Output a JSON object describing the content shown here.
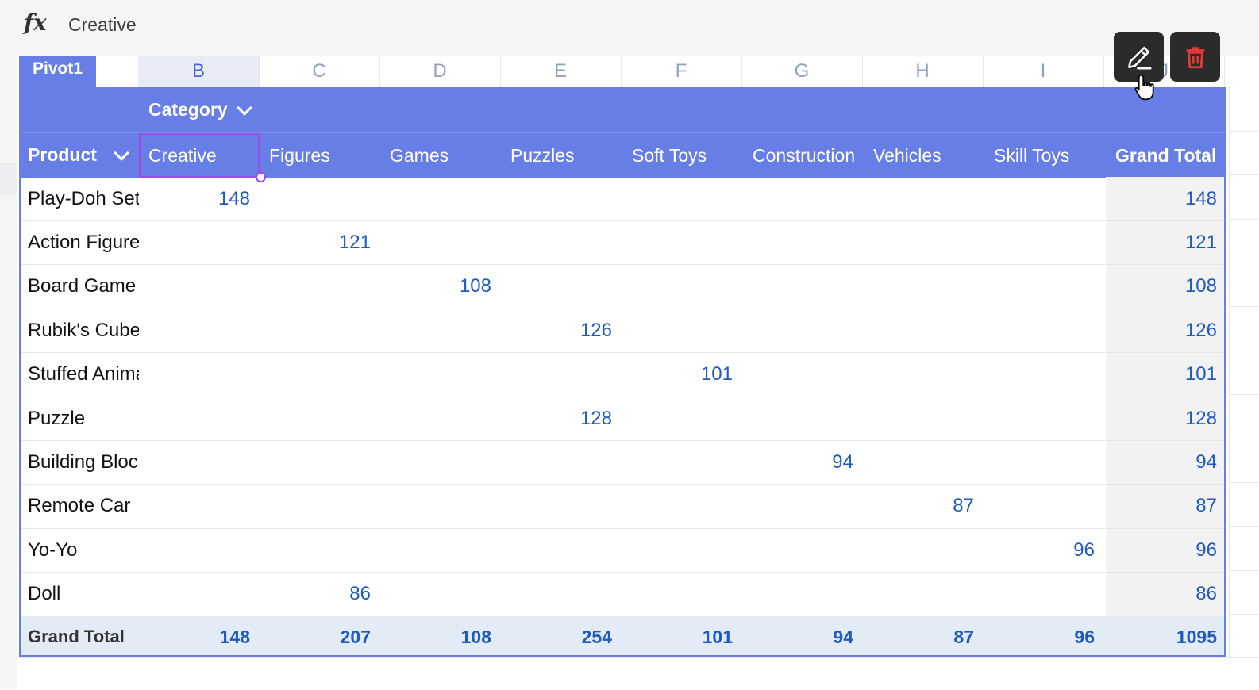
{
  "formula_bar": {
    "fx_label": "fx",
    "value": "Creative"
  },
  "columns": [
    "B",
    "C",
    "D",
    "E",
    "F",
    "G",
    "H",
    "I",
    "J"
  ],
  "pivot": {
    "tab_name": "Pivot1",
    "column_field": "Category",
    "row_field": "Product",
    "categories": [
      "Creative",
      "Figures",
      "Games",
      "Puzzles",
      "Soft Toys",
      "Construction",
      "Vehicles",
      "Skill Toys"
    ],
    "grand_total_label": "Grand Total",
    "rows": [
      {
        "product": "Play-Doh Set",
        "values": [
          "148",
          "",
          "",
          "",
          "",
          "",
          "",
          ""
        ],
        "total": "148"
      },
      {
        "product": "Action Figure",
        "values": [
          "",
          "121",
          "",
          "",
          "",
          "",
          "",
          ""
        ],
        "total": "121"
      },
      {
        "product": "Board Game",
        "values": [
          "",
          "",
          "108",
          "",
          "",
          "",
          "",
          ""
        ],
        "total": "108"
      },
      {
        "product": "Rubik's Cube",
        "values": [
          "",
          "",
          "",
          "126",
          "",
          "",
          "",
          ""
        ],
        "total": "126"
      },
      {
        "product": "Stuffed Animal",
        "values": [
          "",
          "",
          "",
          "",
          "101",
          "",
          "",
          ""
        ],
        "total": "101"
      },
      {
        "product": "Puzzle",
        "values": [
          "",
          "",
          "",
          "128",
          "",
          "",
          "",
          ""
        ],
        "total": "128"
      },
      {
        "product": "Building Blocks",
        "values": [
          "",
          "",
          "",
          "",
          "",
          "94",
          "",
          ""
        ],
        "total": "94"
      },
      {
        "product": "Remote Car",
        "values": [
          "",
          "",
          "",
          "",
          "",
          "",
          "87",
          ""
        ],
        "total": "87"
      },
      {
        "product": "Yo-Yo",
        "values": [
          "",
          "",
          "",
          "",
          "",
          "",
          "",
          "96"
        ],
        "total": "96"
      },
      {
        "product": "Doll",
        "values": [
          "",
          "86",
          "",
          "",
          "",
          "",
          "",
          ""
        ],
        "total": "86"
      }
    ],
    "totals": [
      "148",
      "207",
      "108",
      "254",
      "101",
      "94",
      "87",
      "96"
    ],
    "grand_total": "1095"
  },
  "actions": {
    "edit_icon": "pencil-icon",
    "delete_icon": "trash-icon"
  },
  "colors": {
    "accent": "#667ee6",
    "value_text": "#1f5bbf",
    "delete": "#e53935"
  }
}
